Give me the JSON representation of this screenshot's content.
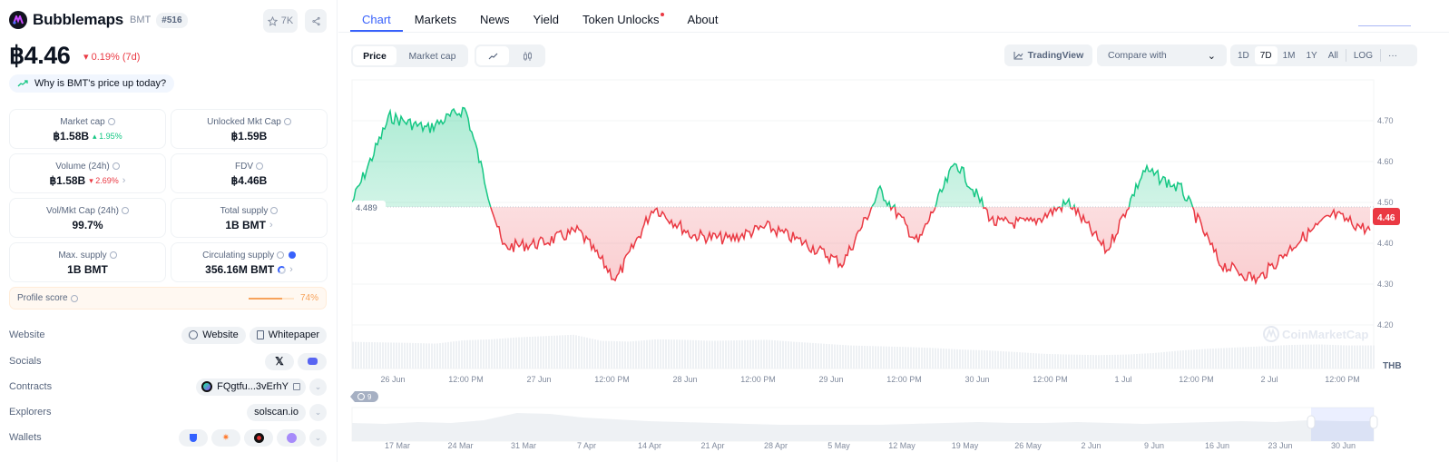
{
  "coin": {
    "name": "Bubblemaps",
    "symbol": "BMT",
    "rank": "#516",
    "watchlist_count": "7K",
    "price": "฿4.46",
    "change_7d": "0.19% (7d)",
    "change_direction": "down",
    "why_link": "Why is BMT's price up today?"
  },
  "stats": [
    {
      "label": "Market cap",
      "value": "฿1.58B",
      "change": "1.95%",
      "direction": "up"
    },
    {
      "label": "Unlocked Mkt Cap",
      "value": "฿1.59B"
    },
    {
      "label": "Volume (24h)",
      "value": "฿1.58B",
      "change": "2.69%",
      "direction": "down",
      "has_chevron": true
    },
    {
      "label": "FDV",
      "value": "฿4.46B"
    },
    {
      "label": "Vol/Mkt Cap (24h)",
      "value": "99.7%"
    },
    {
      "label": "Total supply",
      "value": "1B BMT",
      "has_chevron": true
    },
    {
      "label": "Max. supply",
      "value": "1B BMT"
    },
    {
      "label": "Circulating supply",
      "value": "356.16M BMT",
      "verified": true,
      "has_chevron": true
    }
  ],
  "profile_score": {
    "label": "Profile score",
    "value": "74%",
    "percent": 74
  },
  "links": {
    "website": {
      "label": "Website",
      "items": [
        "Website",
        "Whitepaper"
      ]
    },
    "socials": {
      "label": "Socials",
      "items": [
        "x-icon",
        "discord-icon"
      ]
    },
    "contracts": {
      "label": "Contracts",
      "address": "FQgtfu...3vErhY"
    },
    "explorers": {
      "label": "Explorers",
      "value": "solscan.io"
    },
    "wallets": {
      "label": "Wallets",
      "items": [
        "shield-wallet-icon",
        "spark-wallet-icon",
        "red-wallet-icon",
        "purple-wallet-icon"
      ]
    }
  },
  "tabs": [
    "Chart",
    "Markets",
    "News",
    "Yield",
    "Token Unlocks",
    "About"
  ],
  "active_tab": "Chart",
  "toolbar": {
    "metric_options": [
      "Price",
      "Market cap"
    ],
    "active_metric": "Price",
    "chart_types": [
      "line-chart-icon",
      "candlestick-icon"
    ],
    "tradingview": "TradingView",
    "compare_placeholder": "Compare with",
    "ranges": [
      "1D",
      "7D",
      "1M",
      "1Y",
      "All"
    ],
    "active_range": "7D",
    "log": "LOG",
    "more": "···"
  },
  "chart": {
    "baseline_label": "4.489",
    "current_label": "4.46",
    "currency": "THB",
    "watermark": "CoinMarketCap",
    "y_ticks": [
      "4.70",
      "4.60",
      "4.50",
      "4.40",
      "4.30",
      "4.20"
    ],
    "x_ticks": [
      "26 Jun",
      "12:00 PM",
      "27 Jun",
      "12:00 PM",
      "28 Jun",
      "12:00 PM",
      "29 Jun",
      "12:00 PM",
      "30 Jun",
      "12:00 PM",
      "1 Jul",
      "12:00 PM",
      "2 Jul",
      "12:00 PM"
    ],
    "nav_ticks": [
      "17 Mar",
      "24 Mar",
      "31 Mar",
      "7 Apr",
      "14 Apr",
      "21 Apr",
      "28 Apr",
      "5 May",
      "12 May",
      "19 May",
      "26 May",
      "2 Jun",
      "9 Jun",
      "16 Jun",
      "23 Jun",
      "30 Jun"
    ],
    "history_badge": "9",
    "colors": {
      "up": "#16c784",
      "down": "#ea3943",
      "accent": "#3861fb"
    }
  },
  "chart_data": {
    "type": "area",
    "title": "Bubblemaps (BMT) Price 7D",
    "xlabel": "",
    "ylabel": "Price (THB)",
    "ylim": [
      4.15,
      4.78
    ],
    "baseline": 4.489,
    "x": [
      "26 Jun 00:00",
      "26 Jun 06:00",
      "26 Jun 12:00",
      "26 Jun 18:00",
      "27 Jun 00:00",
      "27 Jun 06:00",
      "27 Jun 12:00",
      "27 Jun 18:00",
      "28 Jun 00:00",
      "28 Jun 06:00",
      "28 Jun 12:00",
      "28 Jun 18:00",
      "29 Jun 00:00",
      "29 Jun 06:00",
      "29 Jun 12:00",
      "29 Jun 18:00",
      "30 Jun 00:00",
      "30 Jun 06:00",
      "30 Jun 12:00",
      "30 Jun 18:00",
      "1 Jul 00:00",
      "1 Jul 06:00",
      "1 Jul 12:00",
      "1 Jul 18:00",
      "2 Jul 00:00",
      "2 Jul 06:00",
      "2 Jul 12:00",
      "2 Jul 18:00"
    ],
    "series": [
      {
        "name": "Price",
        "values": [
          4.5,
          4.71,
          4.68,
          4.73,
          4.39,
          4.4,
          4.43,
          4.31,
          4.49,
          4.42,
          4.41,
          4.44,
          4.4,
          4.35,
          4.53,
          4.4,
          4.6,
          4.45,
          4.45,
          4.5,
          4.38,
          4.58,
          4.53,
          4.35,
          4.31,
          4.4,
          4.47,
          4.43
        ]
      }
    ],
    "grid": true,
    "legend": "none"
  }
}
